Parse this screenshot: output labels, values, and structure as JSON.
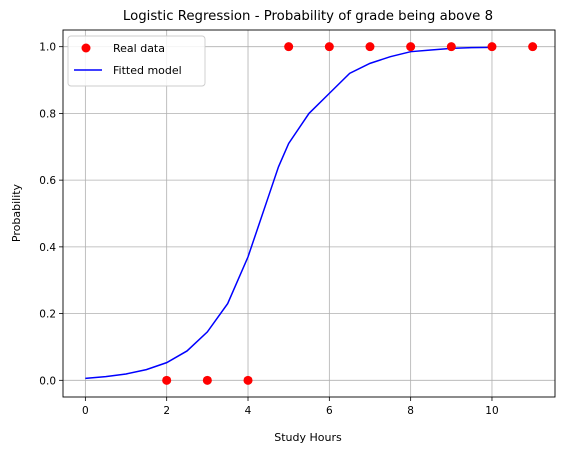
{
  "chart_data": {
    "type": "scatter",
    "title": "Logistic Regression - Probability of grade being above 8",
    "xlabel": "Study Hours",
    "ylabel": "Probability",
    "xlim": [
      -0.55,
      11.55
    ],
    "ylim": [
      -0.05,
      1.05
    ],
    "xticks": [
      0,
      2,
      4,
      6,
      8,
      10
    ],
    "yticks": [
      0.0,
      0.2,
      0.4,
      0.6,
      0.8,
      1.0
    ],
    "xtick_labels": [
      "0",
      "2",
      "4",
      "6",
      "8",
      "10"
    ],
    "ytick_labels": [
      "0.0",
      "0.2",
      "0.4",
      "0.6",
      "0.8",
      "1.0"
    ],
    "grid": true,
    "legend_position": "top-left",
    "series": [
      {
        "name": "Real data",
        "kind": "scatter",
        "color": "#ff0000",
        "x": [
          2,
          3,
          4,
          5,
          6,
          7,
          8,
          9,
          10,
          11
        ],
        "y": [
          0,
          0,
          0,
          1,
          1,
          1,
          1,
          1,
          1,
          1
        ]
      },
      {
        "name": "Fitted model",
        "kind": "line",
        "color": "#0000ff",
        "x": [
          0,
          0.5,
          1,
          1.5,
          2,
          2.5,
          3,
          3.5,
          4,
          4.25,
          4.5,
          4.75,
          5,
          5.5,
          6,
          6.5,
          7,
          7.5,
          8,
          8.5,
          9,
          9.5,
          10
        ],
        "y": [
          0.006,
          0.011,
          0.019,
          0.032,
          0.053,
          0.088,
          0.145,
          0.23,
          0.37,
          0.46,
          0.55,
          0.64,
          0.71,
          0.8,
          0.86,
          0.92,
          0.95,
          0.97,
          0.985,
          0.99,
          0.995,
          0.997,
          0.998
        ]
      }
    ]
  }
}
